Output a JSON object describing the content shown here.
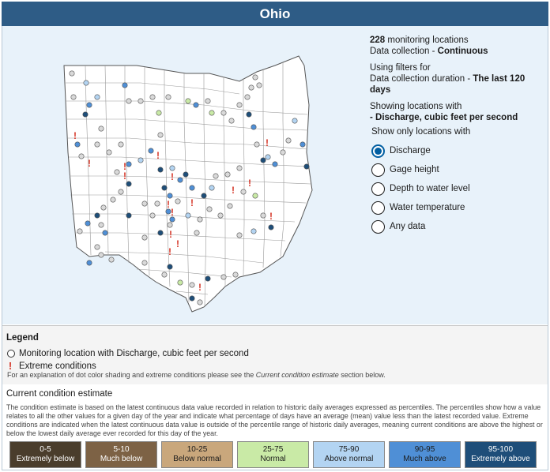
{
  "title": "Ohio",
  "info": {
    "count": "228",
    "count_suffix": " monitoring locations",
    "collection_label": "Data collection - ",
    "collection_value": "Continuous",
    "using_filters": "Using filters for",
    "duration_label": "Data collection duration - ",
    "duration_value": "The last 120 days",
    "showing": "Showing locations with",
    "parameter": "- Discharge, cubic feet per second"
  },
  "filter": {
    "heading": "Show only locations with",
    "options": [
      "Discharge",
      "Gage height",
      "Depth to water level",
      "Water temperature",
      "Any data"
    ],
    "selected": "Discharge"
  },
  "legend": {
    "title": "Legend",
    "item_location": "Monitoring location with Discharge, cubic feet per second",
    "item_extreme": "Extreme conditions",
    "note_prefix": "For an explanation of dot color shading and extreme conditions please see the ",
    "note_link": "Current condition estimate",
    "note_suffix": " section below."
  },
  "condition": {
    "title": "Current condition estimate",
    "description": "The condition estimate is based on the latest continuous data value recorded in relation to historic daily averages expressed as percentiles. The percentiles show how a value relates to all the other values for a given day of the year and indicate what percentage of days have an average (mean) value less than the latest recorded value. Extreme conditions are indicated when the latest continuous data value is outside of the percentile range of historic daily averages, meaning current conditions are above the highest or below the lowest daily average ever recorded for this day of the year.",
    "categories": [
      {
        "range": "0-5",
        "label": "Extremely below",
        "color": "#4a3d2c",
        "text": "#ffffff"
      },
      {
        "range": "5-10",
        "label": "Much below",
        "color": "#7d6245",
        "text": "#ffffff"
      },
      {
        "range": "10-25",
        "label": "Below normal",
        "color": "#c9a77c",
        "text": "#1b1b1b"
      },
      {
        "range": "25-75",
        "label": "Normal",
        "color": "#c9eaa6",
        "text": "#1b1b1b"
      },
      {
        "range": "75-90",
        "label": "Above normal",
        "color": "#b3d4f2",
        "text": "#1b1b1b"
      },
      {
        "range": "90-95",
        "label": "Much above",
        "color": "#4f8fd6",
        "text": "#1b1b1b"
      },
      {
        "range": "95-100",
        "label": "Extremely above",
        "color": "#1e4e79",
        "text": "#ffffff"
      }
    ]
  },
  "colors": {
    "header": "#2e5c86",
    "panel": "#e8f2fa",
    "radio_selected": "#005ea2",
    "extreme": "#d6392b"
  }
}
